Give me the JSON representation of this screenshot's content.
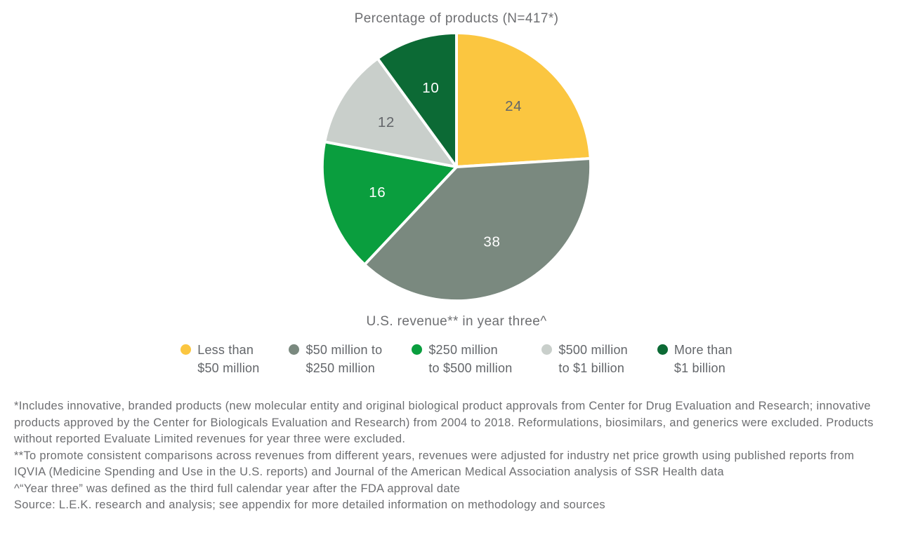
{
  "chart_data": {
    "type": "pie",
    "title": "Percentage of products (N=417*)",
    "subtitle": "U.S. revenue** in year three^",
    "start_angle_deg": 0,
    "direction": "clockwise",
    "legend_position": "bottom",
    "slices": [
      {
        "label": "Less than\n$50 million",
        "value": 24,
        "color": "#fbc640",
        "value_label_color": "#63666a"
      },
      {
        "label": "$50 million to\n$250 million",
        "value": 38,
        "color": "#7a897f",
        "value_label_color": "#ffffff"
      },
      {
        "label": "$250 million\nto $500 million",
        "value": 16,
        "color": "#0a9e3e",
        "value_label_color": "#ffffff"
      },
      {
        "label": "$500 million\nto $1 billion",
        "value": 12,
        "color": "#c9cfcb",
        "value_label_color": "#63666a"
      },
      {
        "label": "More than\n$1 billion",
        "value": 10,
        "color": "#0c6a35",
        "value_label_color": "#ffffff"
      }
    ]
  },
  "footnotes": [
    "*Includes innovative, branded products (new molecular entity and original biological product approvals from Center for Drug Evaluation and Research; innovative products approved by the Center for Biologicals Evaluation and Research) from 2004 to 2018. Reformulations, biosimilars, and generics were excluded. Products without reported Evaluate Limited revenues for year three were excluded.",
    "**To promote consistent comparisons across revenues from different years, revenues were adjusted for industry net price growth using published reports from IQVIA (Medicine Spending and Use in the U.S. reports) and Journal of the American Medical Association analysis of SSR Health data",
    "^“Year three” was defined as the third full calendar year after the FDA approval date",
    "Source: L.E.K. research and analysis; see appendix for more detailed information on methodology and sources"
  ],
  "colors": {
    "body_text": "#6d6e71",
    "slice_gap_stroke": "#ffffff"
  }
}
